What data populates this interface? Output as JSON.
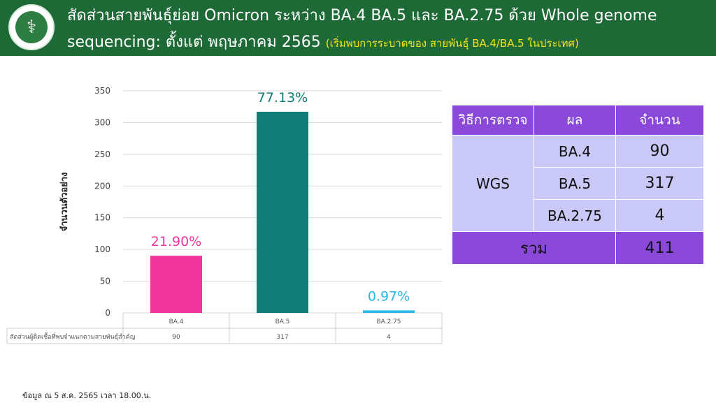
{
  "header": {
    "title_line1": "สัดส่วนสายพันธุ์ย่อย Omicron ระหว่าง BA.4 BA.5 และ BA.2.75  ด้วย Whole genome",
    "title_line2": "sequencing: ตั้งแต่ พฤษภาคม 2565",
    "title_note": "(เริ่มพบการระบาดของ สายพันธุ์ BA.4/BA.5 ในประเทศ)",
    "logo_icon": "department-seal-icon",
    "bar_color": "#1e6a37",
    "note_color": "#f4e21a"
  },
  "chart_data": {
    "type": "bar",
    "categories": [
      "BA.4",
      "BA.5",
      "BA.2.75"
    ],
    "values": [
      90,
      317,
      4
    ],
    "data_labels": [
      "21.90%",
      "77.13%",
      "0.97%"
    ],
    "bar_colors": [
      "#f2359a",
      "#137d78",
      "#2cb7e6"
    ],
    "label_colors": [
      "#f2359a",
      "#137d78",
      "#2cb7e6"
    ],
    "ylabel": "จำนวนตัวอย่าง",
    "ylim": [
      0,
      350
    ],
    "yticks": [
      0,
      50,
      100,
      150,
      200,
      250,
      300,
      350
    ],
    "grid": true,
    "data_table": {
      "row_label": "สัดส่วนผู้ติดเชื้อที่พบจำแนกตามสายพันธุ์สำคัญ",
      "values": [
        "90",
        "317",
        "4"
      ]
    }
  },
  "results_table": {
    "headers": [
      "วิธีการตรวจ",
      "ผล",
      "จำนวน"
    ],
    "method": "WGS",
    "rows": [
      {
        "result": "BA.4",
        "count": "90"
      },
      {
        "result": "BA.5",
        "count": "317"
      },
      {
        "result": "BA.2.75",
        "count": "4"
      }
    ],
    "total_label": "รวม",
    "total_count": "411",
    "header_color": "#8a49d9",
    "cell_color": "#c9c8f7"
  },
  "footnote": "ข้อมูล ณ 5 ส.ค. 2565 เวลา 18.00.น."
}
